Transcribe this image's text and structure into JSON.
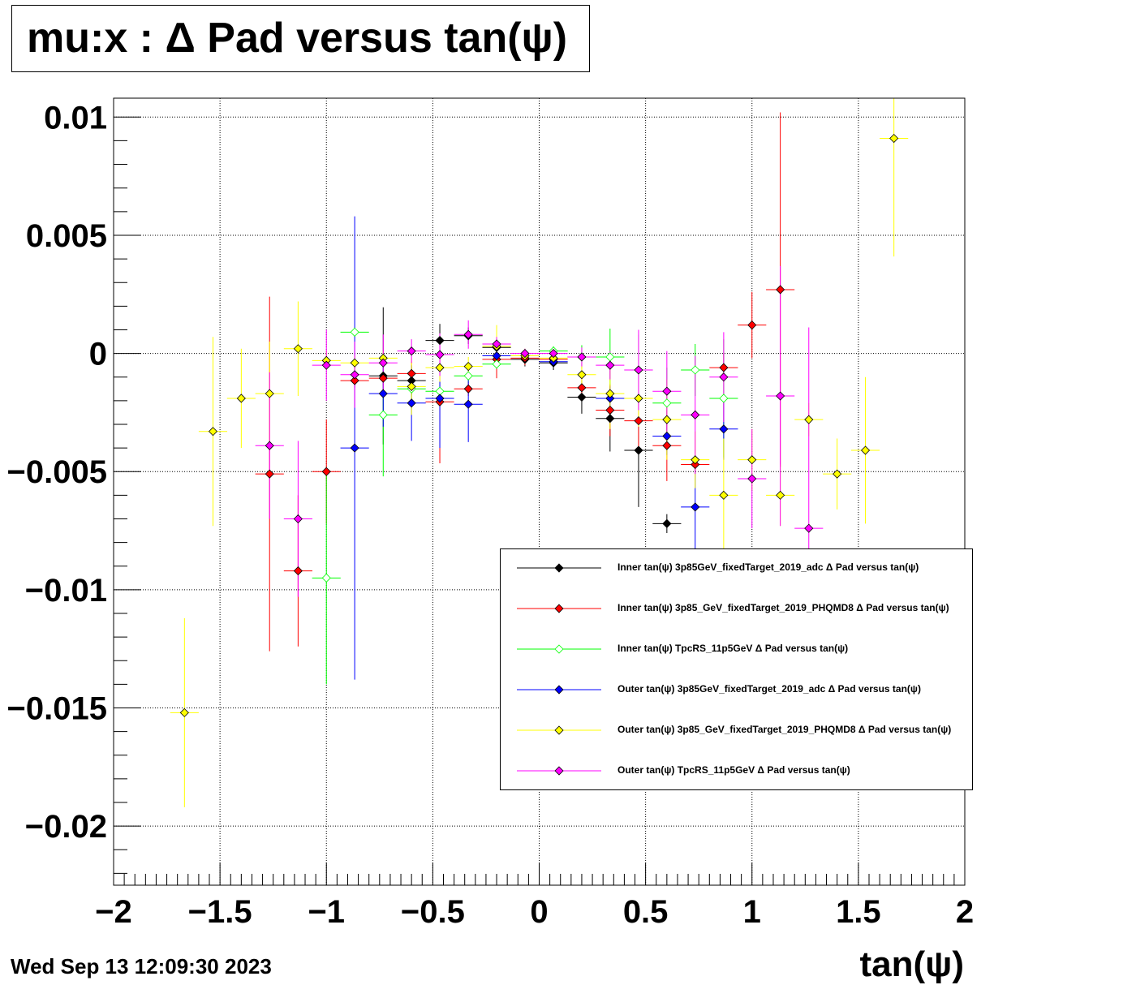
{
  "title": "mu:x : Δ Pad versus tan(ψ)",
  "timestamp": "Wed Sep 13 12:09:30 2023",
  "chart_data": {
    "type": "scatter",
    "title": "mu:x : Δ Pad versus tan(ψ)",
    "xlabel": "tan(ψ)",
    "ylabel": "",
    "xlim": [
      -2,
      2
    ],
    "ylim": [
      -0.0225,
      0.0108
    ],
    "x_ticks": [
      -2,
      -1.5,
      -1,
      -0.5,
      0,
      0.5,
      1,
      1.5,
      2
    ],
    "x_tick_labels": [
      "−2",
      "−1.5",
      "−1",
      "−0.5",
      "0",
      "0.5",
      "1",
      "1.5",
      "2"
    ],
    "y_ticks": [
      0.01,
      0.005,
      0,
      -0.005,
      -0.01,
      -0.015,
      -0.02
    ],
    "y_tick_labels": [
      "0.01",
      "0.005",
      "0",
      "−0.005",
      "−0.01",
      "−0.015",
      "−0.02"
    ],
    "grid": true,
    "legend_position": "bottom-right",
    "series": [
      {
        "name": "Inner tan(ψ) 3p85GeV_fixedTarget_2019_adc Δ Pad versus tan(ψ)",
        "color": "#000000",
        "marker": "diamond-filled",
        "x": [
          -0.733,
          -0.6,
          -0.467,
          -0.333,
          -0.2,
          -0.067,
          0.067,
          0.2,
          0.333,
          0.467,
          0.6
        ],
        "y": [
          -0.00095,
          -0.00115,
          0.00055,
          0.00075,
          0.00025,
          -0.00025,
          -0.0004,
          -0.00185,
          -0.00275,
          -0.0041,
          -0.0072
        ],
        "xerr": [
          0.067,
          0.067,
          0.067,
          0.067,
          0.067,
          0.067,
          0.067,
          0.067,
          0.067,
          0.067,
          0.067
        ],
        "yerr": [
          0.0029,
          0.0006,
          0.0007,
          0.00035,
          0.0003,
          0.0003,
          0.0003,
          0.0007,
          0.0014,
          0.0024,
          0.0004
        ]
      },
      {
        "name": "Inner tan(ψ) 3p85_GeV_fixedTarget_2019_PHQMD8 Δ Pad versus tan(ψ)",
        "color": "#ff0000",
        "marker": "diamond-filled",
        "x": [
          -1.267,
          -1.133,
          -1.0,
          -0.867,
          -0.733,
          -0.6,
          -0.467,
          -0.333,
          -0.2,
          -0.067,
          0.067,
          0.2,
          0.333,
          0.467,
          0.6,
          0.733,
          0.867,
          1.0,
          1.133
        ],
        "y": [
          -0.0051,
          -0.0092,
          -0.005,
          -0.00115,
          -0.00105,
          -0.00085,
          -0.00205,
          -0.0015,
          -0.00025,
          -0.0002,
          -0.00025,
          -0.00145,
          -0.0024,
          -0.00285,
          -0.0039,
          -0.0047,
          -0.0006,
          0.0012,
          0.0027
        ],
        "xerr": [
          0.067,
          0.067,
          0.067,
          0.067,
          0.067,
          0.067,
          0.067,
          0.067,
          0.067,
          0.067,
          0.067,
          0.067,
          0.067,
          0.067,
          0.067,
          0.067,
          0.067,
          0.067,
          0.067
        ],
        "yerr": [
          0.0075,
          0.0032,
          0.0022,
          0.0003,
          0.0003,
          0.0005,
          0.0026,
          0.0003,
          0.0008,
          0.0003,
          0.0002,
          0.0004,
          0.0011,
          0.0012,
          0.0015,
          0.0003,
          0.0006,
          0.0014,
          0.0075
        ]
      },
      {
        "name": "Inner tan(ψ) TpcRS_11p5GeV Δ Pad versus tan(ψ)",
        "color": "#00ff00",
        "marker": "diamond-open",
        "x": [
          -1.0,
          -0.867,
          -0.733,
          -0.6,
          -0.467,
          -0.333,
          -0.2,
          -0.067,
          0.067,
          0.2,
          0.333,
          0.467,
          0.6,
          0.733,
          0.867
        ],
        "y": [
          -0.0095,
          0.0009,
          -0.0026,
          -0.0015,
          -0.0016,
          -0.00095,
          -0.00045,
          -0.0001,
          0.0001,
          -0.00015,
          -0.00015,
          -0.0007,
          -0.0021,
          -0.0007,
          -0.0019
        ],
        "xerr": [
          0.067,
          0.067,
          0.067,
          0.067,
          0.067,
          0.067,
          0.067,
          0.067,
          0.067,
          0.067,
          0.067,
          0.067,
          0.067,
          0.067,
          0.067
        ],
        "yerr": [
          0.0045,
          0.0002,
          0.0026,
          0.0005,
          0.0004,
          0.0003,
          0.0002,
          0.0002,
          0.0002,
          0.0005,
          0.0012,
          0.0015,
          0.0015,
          0.0011,
          0.0025
        ]
      },
      {
        "name": "Outer tan(ψ) 3p85GeV_fixedTarget_2019_adc Δ Pad versus tan(ψ)",
        "color": "#0000ff",
        "marker": "diamond-filled",
        "x": [
          -0.867,
          -0.733,
          -0.6,
          -0.467,
          -0.333,
          -0.2,
          0.067,
          0.333,
          0.6,
          0.733,
          0.867
        ],
        "y": [
          -0.004,
          -0.0017,
          -0.0021,
          -0.0019,
          -0.00215,
          -0.0001,
          -0.00035,
          -0.0019,
          -0.0035,
          -0.0065,
          -0.0032
        ],
        "xerr": [
          0.067,
          0.067,
          0.067,
          0.067,
          0.067,
          0.067,
          0.067,
          0.067,
          0.067,
          0.067,
          0.067
        ],
        "yerr": [
          0.0098,
          0.0014,
          0.0016,
          0.0021,
          0.0016,
          0.0002,
          0.0002,
          0.0005,
          0.0008,
          0.0018,
          0.0013
        ]
      },
      {
        "name": "Outer tan(ψ) 3p85_GeV_fixedTarget_2019_PHQMD8 Δ Pad versus tan(ψ)",
        "color": "#ffff00",
        "marker": "diamond-filled",
        "x": [
          -1.667,
          -1.533,
          -1.4,
          -1.267,
          -1.133,
          -1.0,
          -0.867,
          -0.733,
          -0.6,
          -0.467,
          -0.333,
          -0.2,
          -0.067,
          0.067,
          0.2,
          0.333,
          0.467,
          0.6,
          0.733,
          0.867,
          1.0,
          1.133,
          1.267,
          1.4,
          1.533,
          1.667
        ],
        "y": [
          -0.0152,
          -0.0033,
          -0.0019,
          -0.0017,
          0.0002,
          -0.0003,
          -0.0004,
          -0.0002,
          -0.0014,
          -0.0006,
          -0.00055,
          0.0003,
          -0.0001,
          -0.0002,
          -0.0009,
          -0.0017,
          -0.0019,
          -0.0028,
          -0.0045,
          -0.006,
          -0.0045,
          -0.006,
          -0.0028,
          -0.0051,
          -0.0041,
          0.0091
        ],
        "xerr": [
          0.067,
          0.067,
          0.067,
          0.067,
          0.067,
          0.067,
          0.067,
          0.067,
          0.067,
          0.067,
          0.067,
          0.067,
          0.067,
          0.067,
          0.067,
          0.067,
          0.067,
          0.067,
          0.067,
          0.067,
          0.067,
          0.067,
          0.067,
          0.067,
          0.067,
          0.067
        ],
        "yerr": [
          0.004,
          0.004,
          0.0021,
          0.0022,
          0.002,
          0.0004,
          0.0003,
          0.0003,
          0.0012,
          0.0006,
          0.0004,
          0.0009,
          0.0003,
          0.0003,
          0.0005,
          0.0015,
          0.0012,
          0.0017,
          0.0012,
          0.0024,
          0.0013,
          0.0013,
          0.0007,
          0.0015,
          0.0031,
          0.005
        ]
      },
      {
        "name": "Outer tan(ψ) TpcRS_11p5GeV Δ Pad versus tan(ψ)",
        "color": "#ff00ff",
        "marker": "diamond-filled",
        "x": [
          -1.267,
          -1.133,
          -1.0,
          -0.867,
          -0.733,
          -0.6,
          -0.467,
          -0.333,
          -0.2,
          -0.067,
          0.067,
          0.2,
          0.333,
          0.467,
          0.6,
          0.733,
          0.867,
          1.0,
          1.133,
          1.267
        ],
        "y": [
          -0.0039,
          -0.007,
          -0.0005,
          -0.0009,
          -0.0004,
          0.0001,
          -5e-05,
          0.0008,
          0.0004,
          0.0,
          0.0,
          -0.00015,
          -0.0005,
          -0.0007,
          -0.0016,
          -0.0026,
          -0.001,
          -0.0053,
          -0.0018,
          -0.0074
        ],
        "xerr": [
          0.067,
          0.067,
          0.067,
          0.067,
          0.067,
          0.067,
          0.067,
          0.067,
          0.067,
          0.067,
          0.067,
          0.067,
          0.067,
          0.067,
          0.067,
          0.067,
          0.067,
          0.067,
          0.067,
          0.067
        ],
        "yerr": [
          0.0031,
          0.0033,
          0.0015,
          0.0014,
          0.0012,
          0.0005,
          0.0009,
          0.0006,
          0.0003,
          0.0002,
          0.0002,
          0.0004,
          0.0006,
          0.0017,
          0.0017,
          0.0025,
          0.0019,
          0.0021,
          0.0055,
          0.0085
        ]
      }
    ]
  }
}
